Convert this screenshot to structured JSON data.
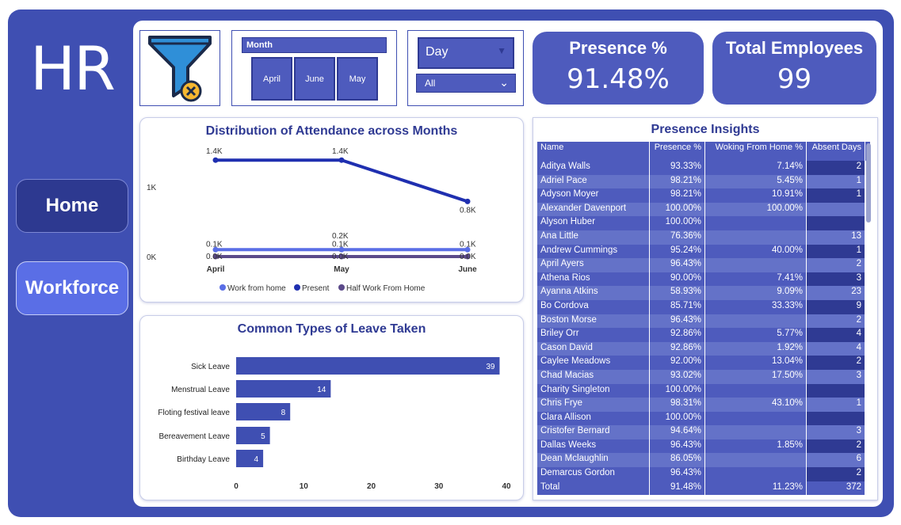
{
  "brand": {
    "title": "HR"
  },
  "nav": {
    "home": "Home",
    "workforce": "Workforce"
  },
  "filters": {
    "month_label": "Month",
    "months": [
      "April",
      "June",
      "May"
    ],
    "day_label": "Day",
    "day_value": "All"
  },
  "kpis": [
    {
      "title": "Presence %",
      "value": "91.48%"
    },
    {
      "title": "Total Employees",
      "value": "99"
    }
  ],
  "colors": {
    "primary": "#3f4fb2",
    "dark": "#2f3a93",
    "light": "#6472c8",
    "accent": "#5a6ee6"
  },
  "chart_data": [
    {
      "type": "line",
      "title": "Distribution of Attendance across Months",
      "categories": [
        "April",
        "May",
        "June"
      ],
      "y_ticks": [
        "1K",
        "0K"
      ],
      "ylim": [
        0,
        1500
      ],
      "series": [
        {
          "name": "Work from home",
          "values": [
            100,
            100,
            100
          ],
          "labels": [
            "0.1K",
            "0.1K",
            "0.1K"
          ],
          "color": "#5a6ee6"
        },
        {
          "name": "Present",
          "values": [
            1400,
            1400,
            800
          ],
          "labels": [
            "1.4K",
            "1.4K",
            "0.8K"
          ],
          "color": "#1f2fb0"
        },
        {
          "name": "Half Work From Home",
          "values": [
            0,
            0,
            0
          ],
          "labels": [
            "0.0K",
            "0.0K",
            "0.0K"
          ],
          "color": "#5b4a8a"
        }
      ],
      "extra_label": "0.2K",
      "legend": "bottom"
    },
    {
      "type": "bar",
      "title": "Common Types of Leave Taken",
      "categories": [
        "Sick Leave",
        "Menstrual Leave",
        "Floting festival leave",
        "Bereavement Leave",
        "Birthday Leave"
      ],
      "values": [
        39,
        14,
        8,
        5,
        4
      ],
      "xlim": [
        0,
        40
      ],
      "x_ticks": [
        0,
        10,
        20,
        30,
        40
      ]
    }
  ],
  "table": {
    "title": "Presence Insights",
    "columns": [
      "Name",
      "Presence %",
      "Woking From Home %",
      "Absent Days"
    ],
    "rows": [
      [
        "Aditya Walls",
        "93.33%",
        "7.14%",
        "2"
      ],
      [
        "Adriel Pace",
        "98.21%",
        "5.45%",
        "1"
      ],
      [
        "Adyson Moyer",
        "98.21%",
        "10.91%",
        "1"
      ],
      [
        "Alexander Davenport",
        "100.00%",
        "100.00%",
        ""
      ],
      [
        "Alyson Huber",
        "100.00%",
        "",
        ""
      ],
      [
        "Ana Little",
        "76.36%",
        "",
        "13"
      ],
      [
        "Andrew Cummings",
        "95.24%",
        "40.00%",
        "1"
      ],
      [
        "April Ayers",
        "96.43%",
        "",
        "2"
      ],
      [
        "Athena Rios",
        "90.00%",
        "7.41%",
        "3"
      ],
      [
        "Ayanna Atkins",
        "58.93%",
        "9.09%",
        "23"
      ],
      [
        "Bo Cordova",
        "85.71%",
        "33.33%",
        "9"
      ],
      [
        "Boston Morse",
        "96.43%",
        "",
        "2"
      ],
      [
        "Briley Orr",
        "92.86%",
        "5.77%",
        "4"
      ],
      [
        "Cason David",
        "92.86%",
        "1.92%",
        "4"
      ],
      [
        "Caylee Meadows",
        "92.00%",
        "13.04%",
        "2"
      ],
      [
        "Chad Macias",
        "93.02%",
        "17.50%",
        "3"
      ],
      [
        "Charity Singleton",
        "100.00%",
        "",
        ""
      ],
      [
        "Chris Frye",
        "98.31%",
        "43.10%",
        "1"
      ],
      [
        "Clara Allison",
        "100.00%",
        "",
        ""
      ],
      [
        "Cristofer Bernard",
        "94.64%",
        "",
        "3"
      ],
      [
        "Dallas Weeks",
        "96.43%",
        "1.85%",
        "2"
      ],
      [
        "Dean Mclaughlin",
        "86.05%",
        "",
        "6"
      ],
      [
        "Demarcus Gordon",
        "96.43%",
        "",
        "2"
      ]
    ],
    "total": [
      "Total",
      "91.48%",
      "11.23%",
      "372"
    ]
  }
}
